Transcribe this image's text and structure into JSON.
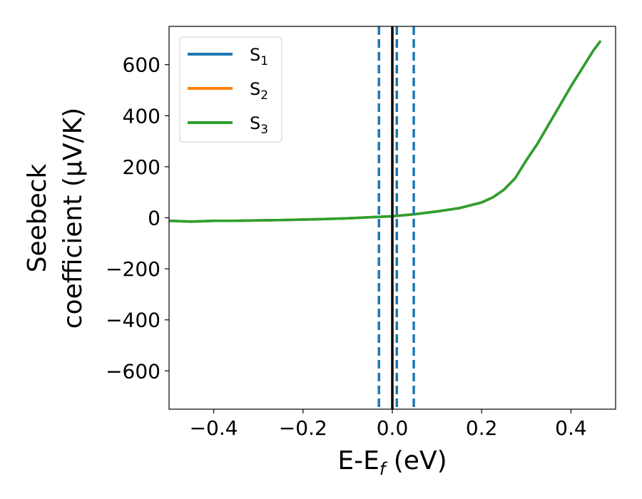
{
  "chart_data": {
    "type": "line",
    "title": "",
    "xlabel": "E-E",
    "xlabel_sub": "f",
    "xlabel_suffix": " (eV)",
    "ylabel_line1": "Seebeck",
    "ylabel_line2": "coefficient  (μV/K)",
    "xlim": [
      -0.5,
      0.5
    ],
    "ylim": [
      -750,
      750
    ],
    "x_ticks": [
      -0.4,
      -0.2,
      0.0,
      0.2,
      0.4
    ],
    "x_tick_labels": [
      "−0.4",
      "−0.2",
      "0.0",
      "0.2",
      "0.4"
    ],
    "y_ticks": [
      -600,
      -400,
      -200,
      0,
      200,
      400,
      600
    ],
    "y_tick_labels": [
      "−600",
      "−400",
      "−200",
      "0",
      "200",
      "400",
      "600"
    ],
    "grid": false,
    "legend_position": "top-left",
    "fermi_level": {
      "x": 0.0,
      "color": "#000000",
      "style": "solid"
    },
    "dashed_markers": {
      "x": [
        -0.03,
        0.01,
        0.048
      ],
      "color": "#1f77b4",
      "style": "dashed"
    },
    "series": [
      {
        "name": "S",
        "name_sub": "1",
        "color": "#1f77b4",
        "x": [
          -0.5,
          -0.45,
          -0.4,
          -0.35,
          -0.3,
          -0.25,
          -0.2,
          -0.15,
          -0.1,
          -0.05,
          0.0,
          0.05,
          0.1,
          0.15,
          0.2,
          0.225,
          0.25,
          0.275,
          0.3,
          0.325,
          0.35,
          0.375,
          0.4,
          0.425,
          0.45,
          0.465
        ],
        "y": [
          -12,
          -15,
          -12,
          -12,
          -10,
          -9,
          -7,
          -5,
          -2,
          2,
          6,
          14,
          25,
          38,
          60,
          80,
          110,
          155,
          225,
          290,
          365,
          440,
          515,
          585,
          655,
          690
        ]
      },
      {
        "name": "S",
        "name_sub": "2",
        "color": "#ff7f0e",
        "x": [
          -0.5,
          -0.45,
          -0.4,
          -0.35,
          -0.3,
          -0.25,
          -0.2,
          -0.15,
          -0.1,
          -0.05,
          0.0,
          0.05,
          0.1,
          0.15,
          0.2,
          0.225,
          0.25,
          0.275,
          0.3,
          0.325,
          0.35,
          0.375,
          0.4,
          0.425,
          0.45,
          0.465
        ],
        "y": [
          -12,
          -15,
          -12,
          -12,
          -10,
          -9,
          -7,
          -5,
          -2,
          2,
          6,
          14,
          25,
          38,
          60,
          80,
          110,
          155,
          225,
          290,
          365,
          440,
          515,
          585,
          655,
          690
        ]
      },
      {
        "name": "S",
        "name_sub": "3",
        "color": "#2ca02c",
        "x": [
          -0.5,
          -0.45,
          -0.4,
          -0.35,
          -0.3,
          -0.25,
          -0.2,
          -0.15,
          -0.1,
          -0.05,
          0.0,
          0.05,
          0.1,
          0.15,
          0.2,
          0.225,
          0.25,
          0.275,
          0.3,
          0.325,
          0.35,
          0.375,
          0.4,
          0.425,
          0.45,
          0.465
        ],
        "y": [
          -12,
          -15,
          -12,
          -12,
          -10,
          -9,
          -7,
          -5,
          -2,
          2,
          6,
          14,
          25,
          38,
          60,
          80,
          110,
          155,
          225,
          290,
          365,
          440,
          515,
          585,
          655,
          690
        ]
      }
    ]
  }
}
